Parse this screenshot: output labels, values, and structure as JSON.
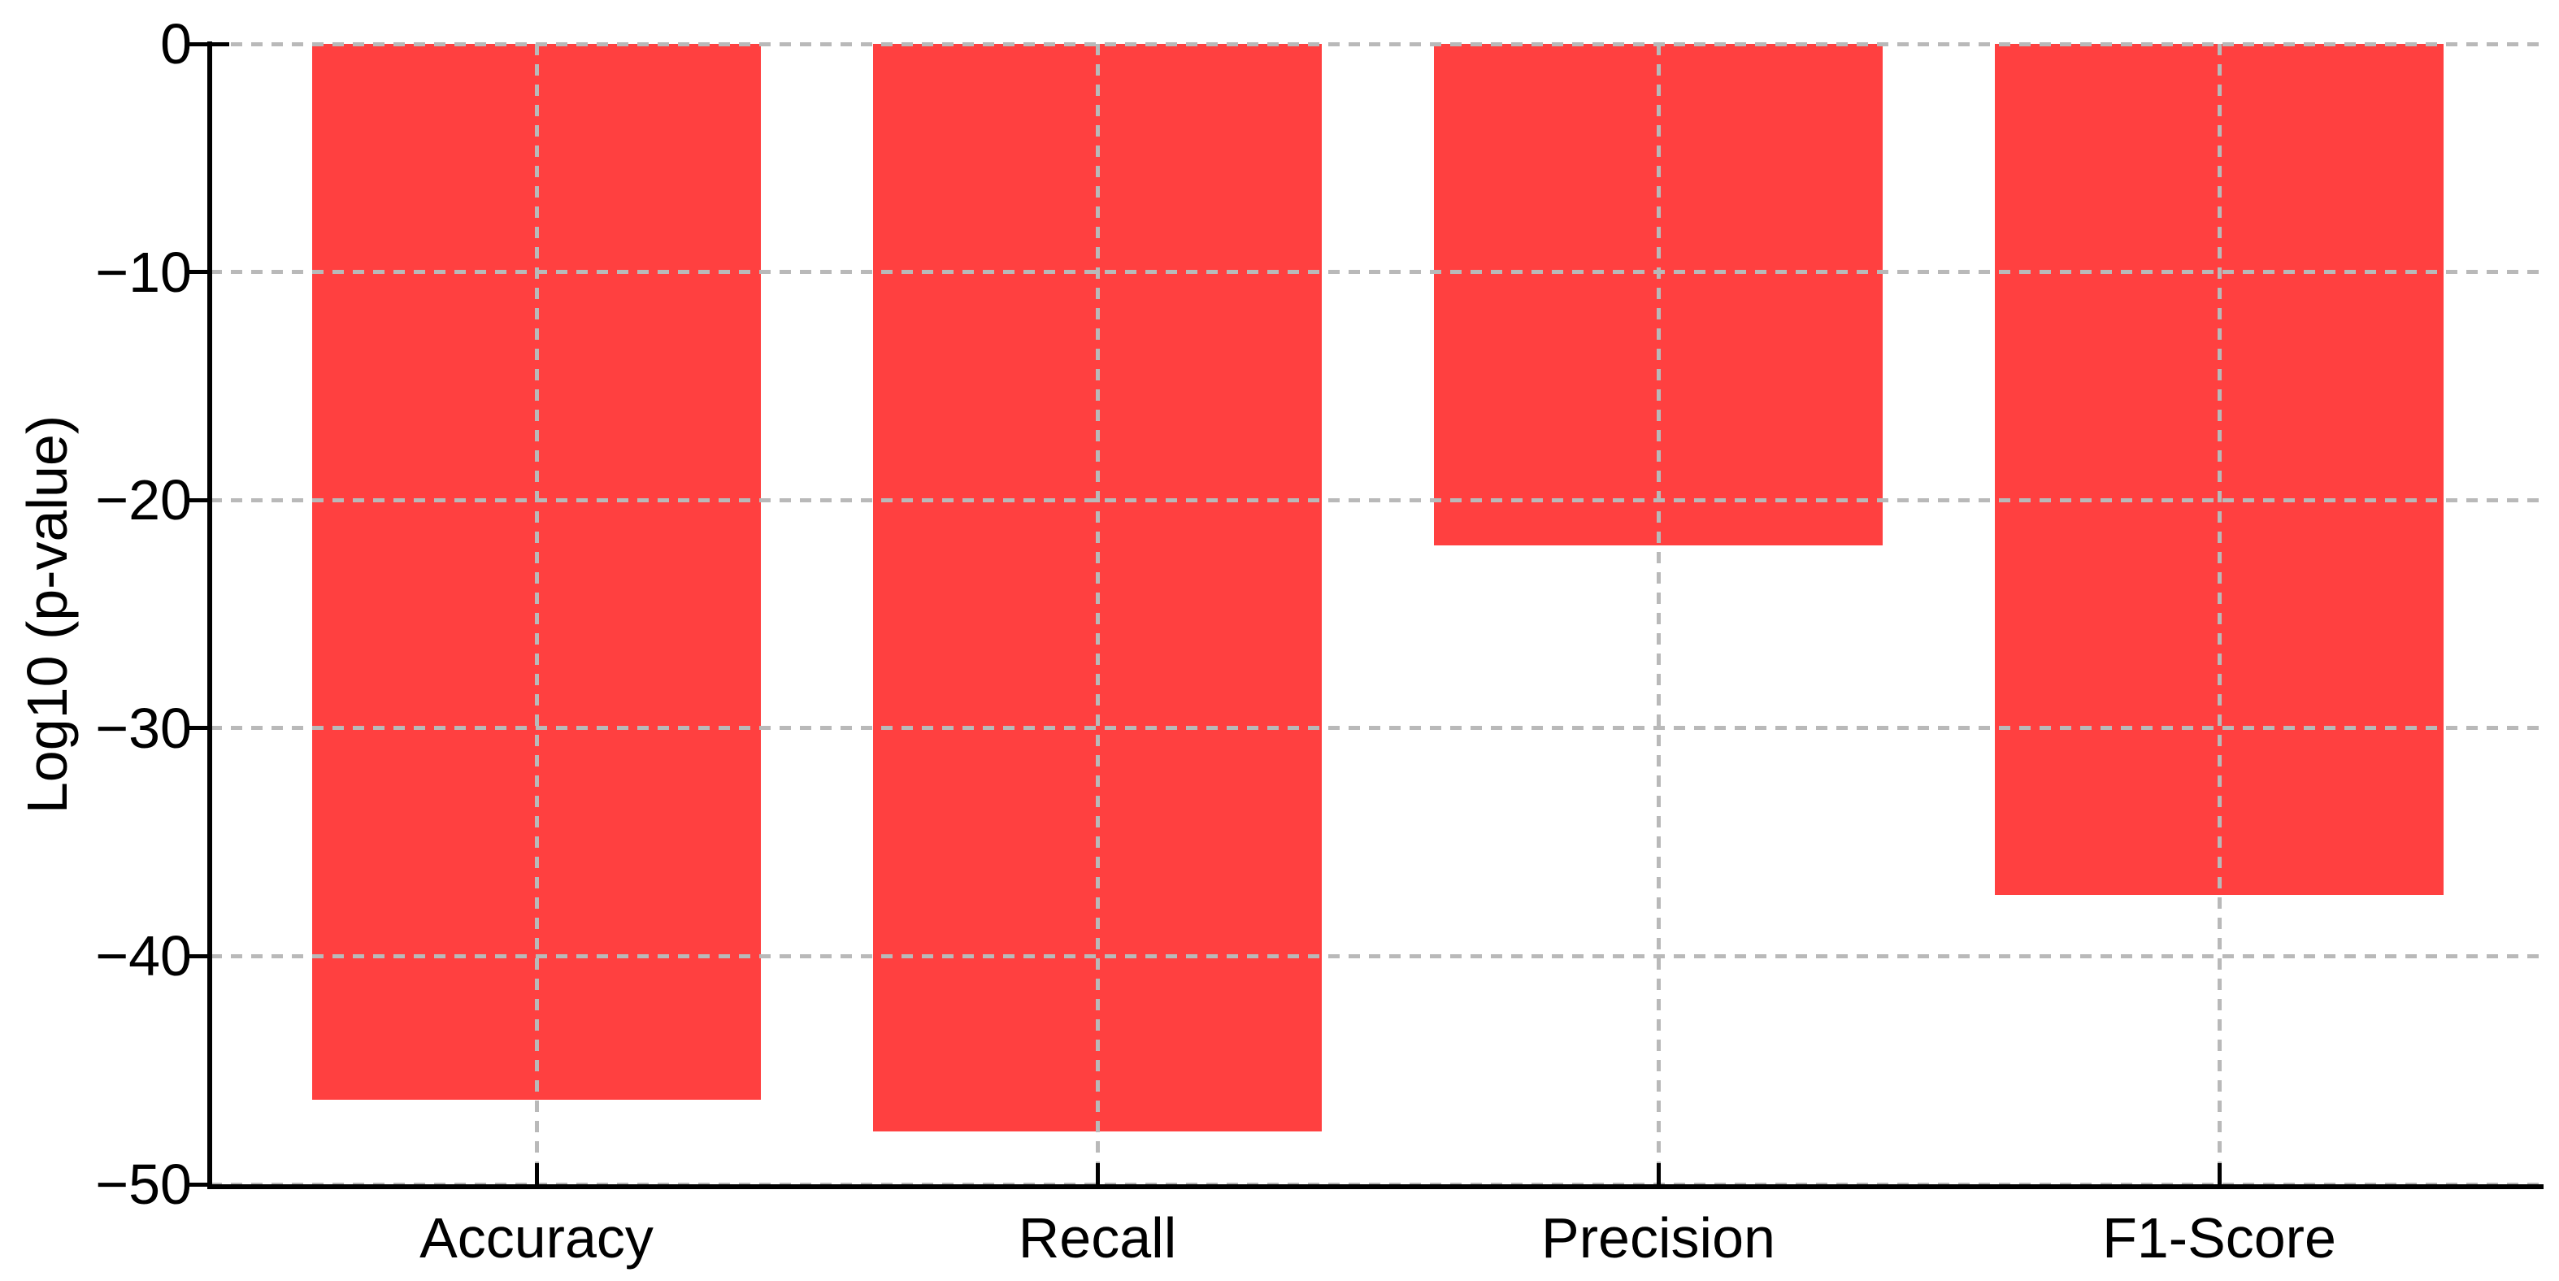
{
  "figure": {
    "background_color": "#ffffff",
    "text_color": "#000000"
  },
  "chart_data": {
    "type": "bar",
    "title": "",
    "xlabel": "",
    "ylabel": "Log10 (p-value)",
    "categories": [
      "Accuracy",
      "Recall",
      "Precision",
      "F1-Score"
    ],
    "values": [
      -46.3,
      -47.7,
      -22.0,
      -37.3
    ],
    "ylim": [
      -50,
      0
    ],
    "yticks": [
      0,
      -10,
      -20,
      -30,
      -40,
      -50
    ],
    "ytick_labels": [
      "0",
      "−10",
      "−20",
      "−30",
      "−40",
      "−50"
    ],
    "bar_color": "#ff4040",
    "grid_color": "#b9b9b9",
    "axis_color": "#000000",
    "grid_style": "dashed",
    "grid_on": true,
    "grid_above_bars": true,
    "legend": null
  }
}
